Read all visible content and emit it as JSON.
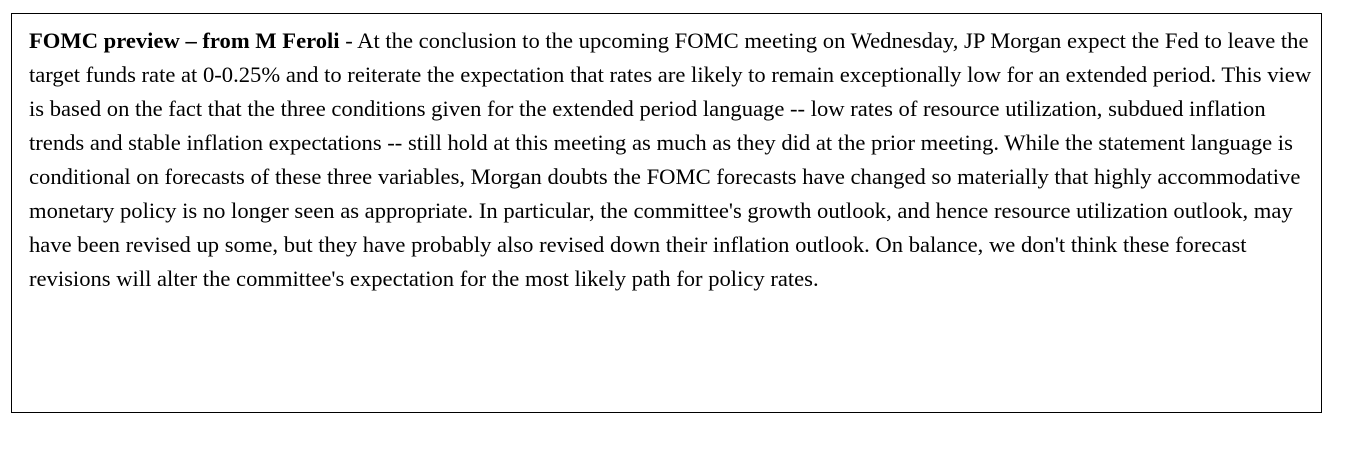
{
  "note": {
    "heading": "FOMC preview – from M Feroli",
    "separator": " - ",
    "body": "At the conclusion to the upcoming FOMC meeting on Wednesday, JP Morgan expect the Fed to leave the target funds rate at 0-0.25% and to reiterate the expectation that rates are likely to remain exceptionally low for an extended period. This view is based on the fact that the three conditions given for the extended period language -- low rates of resource utilization, subdued inflation trends and stable inflation expectations -- still hold at this meeting as much as they did at the prior meeting. While the statement language is conditional on forecasts of these three variables, Morgan doubts the FOMC forecasts have changed so materially that highly accommodative monetary policy is no longer seen as appropriate. In particular, the committee's growth outlook, and hence resource utilization outlook, may have been revised up some, but they have probably also revised down their inflation outlook. On balance, we don't think these forecast revisions will alter the committee's expectation for the most likely path for policy rates."
  }
}
